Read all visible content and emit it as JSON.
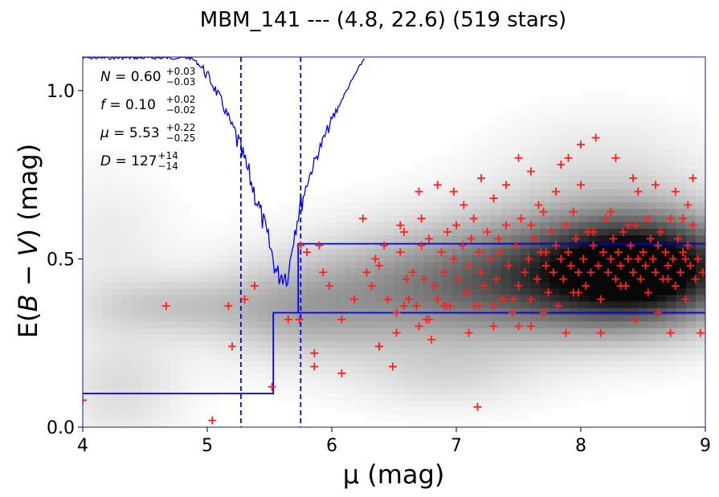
{
  "chart_data": {
    "type": "scatter",
    "title": "MBM_141 --- (4.8, 22.6) (519 stars)",
    "xlabel": "μ (mag)",
    "ylabel_prefix": "E(",
    "ylabel_math": "B − V",
    "ylabel_suffix": ") (mag)",
    "xlim": [
      4,
      9
    ],
    "ylim": [
      0,
      1.1
    ],
    "xticks": [
      4,
      5,
      6,
      7,
      8,
      9
    ],
    "xtick_labels": [
      "4",
      "5",
      "6",
      "7",
      "8",
      "9"
    ],
    "yticks": [
      0.0,
      0.5,
      1.0
    ],
    "ytick_labels": [
      "0.0",
      "0.5",
      "1.0"
    ],
    "grid": false,
    "annotations": [
      {
        "sym": "N",
        "val": "0.60",
        "sup": "+0.03",
        "sub": "−0.03"
      },
      {
        "sym": "f",
        "val": "0.10",
        "sup": "+0.02",
        "sub": "−0.02"
      },
      {
        "sym": "μ",
        "val": "5.53",
        "sup": "+0.22",
        "sub": "−0.25"
      },
      {
        "sym": "D",
        "val": "127",
        "sup": "+14",
        "sub": "−14"
      }
    ],
    "colors": {
      "stars": "#ff2020",
      "model": "#0000ff",
      "density": "#000000",
      "frame": "#1a1a80"
    },
    "stars": [
      [
        4.0,
        0.08
      ],
      [
        4.67,
        0.36
      ],
      [
        5.04,
        0.02
      ],
      [
        5.17,
        0.36
      ],
      [
        5.2,
        0.24
      ],
      [
        5.3,
        0.38
      ],
      [
        5.38,
        0.42
      ],
      [
        5.52,
        0.12
      ],
      [
        5.65,
        0.32
      ],
      [
        5.74,
        0.32
      ],
      [
        5.75,
        0.54
      ],
      [
        5.8,
        0.52
      ],
      [
        5.86,
        0.22
      ],
      [
        5.86,
        0.18
      ],
      [
        5.9,
        0.54
      ],
      [
        5.93,
        0.46
      ],
      [
        5.98,
        0.42
      ],
      [
        6.08,
        0.16
      ],
      [
        6.08,
        0.32
      ],
      [
        6.18,
        0.38
      ],
      [
        6.25,
        0.62
      ],
      [
        6.28,
        0.46
      ],
      [
        6.32,
        0.42
      ],
      [
        6.35,
        0.5
      ],
      [
        6.38,
        0.48
      ],
      [
        6.42,
        0.54
      ],
      [
        6.45,
        0.38
      ],
      [
        6.49,
        0.18
      ],
      [
        6.52,
        0.34
      ],
      [
        6.55,
        0.52
      ],
      [
        6.58,
        0.58
      ],
      [
        6.6,
        0.44
      ],
      [
        6.62,
        0.38
      ],
      [
        6.65,
        0.46
      ],
      [
        6.68,
        0.36
      ],
      [
        6.7,
        0.3
      ],
      [
        6.72,
        0.54
      ],
      [
        6.74,
        0.44
      ],
      [
        6.76,
        0.32
      ],
      [
        6.78,
        0.56
      ],
      [
        6.8,
        0.26
      ],
      [
        6.82,
        0.42
      ],
      [
        6.85,
        0.38
      ],
      [
        6.88,
        0.52
      ],
      [
        6.9,
        0.46
      ],
      [
        6.93,
        0.58
      ],
      [
        6.95,
        0.36
      ],
      [
        6.98,
        0.5
      ],
      [
        7.0,
        0.6
      ],
      [
        7.02,
        0.44
      ],
      [
        7.05,
        0.54
      ],
      [
        7.08,
        0.4
      ],
      [
        7.1,
        0.48
      ],
      [
        7.12,
        0.56
      ],
      [
        7.15,
        0.36
      ],
      [
        7.17,
        0.06
      ],
      [
        7.18,
        0.52
      ],
      [
        7.2,
        0.46
      ],
      [
        7.22,
        0.42
      ],
      [
        7.25,
        0.58
      ],
      [
        7.28,
        0.5
      ],
      [
        7.3,
        0.3
      ],
      [
        7.32,
        0.44
      ],
      [
        7.35,
        0.52
      ],
      [
        7.38,
        0.38
      ],
      [
        7.4,
        0.6
      ],
      [
        7.42,
        0.48
      ],
      [
        7.45,
        0.34
      ],
      [
        7.48,
        0.54
      ],
      [
        7.5,
        0.42
      ],
      [
        7.52,
        0.62
      ],
      [
        7.55,
        0.46
      ],
      [
        7.58,
        0.5
      ],
      [
        7.6,
        0.38
      ],
      [
        7.62,
        0.56
      ],
      [
        7.65,
        0.44
      ],
      [
        7.68,
        0.52
      ],
      [
        7.7,
        0.64
      ],
      [
        7.72,
        0.48
      ],
      [
        7.74,
        0.4
      ],
      [
        7.76,
        0.58
      ],
      [
        7.78,
        0.46
      ],
      [
        7.8,
        0.54
      ],
      [
        7.82,
        0.36
      ],
      [
        7.84,
        0.5
      ],
      [
        7.86,
        0.44
      ],
      [
        7.88,
        0.6
      ],
      [
        7.9,
        0.52
      ],
      [
        7.92,
        0.48
      ],
      [
        7.94,
        0.4
      ],
      [
        7.96,
        0.56
      ],
      [
        7.98,
        0.46
      ],
      [
        8.0,
        0.72
      ],
      [
        8.02,
        0.5
      ],
      [
        8.04,
        0.42
      ],
      [
        8.06,
        0.58
      ],
      [
        8.08,
        0.46
      ],
      [
        8.1,
        0.54
      ],
      [
        8.12,
        0.86
      ],
      [
        8.14,
        0.48
      ],
      [
        8.16,
        0.38
      ],
      [
        8.18,
        0.52
      ],
      [
        8.2,
        0.62
      ],
      [
        8.22,
        0.46
      ],
      [
        8.24,
        0.5
      ],
      [
        8.26,
        0.56
      ],
      [
        8.28,
        0.44
      ],
      [
        8.3,
        0.52
      ],
      [
        8.32,
        0.48
      ],
      [
        8.34,
        0.58
      ],
      [
        8.36,
        0.42
      ],
      [
        8.38,
        0.5
      ],
      [
        8.4,
        0.54
      ],
      [
        8.42,
        0.46
      ],
      [
        8.44,
        0.6
      ],
      [
        8.46,
        0.5
      ],
      [
        8.48,
        0.44
      ],
      [
        8.5,
        0.52
      ],
      [
        8.52,
        0.48
      ],
      [
        8.54,
        0.4
      ],
      [
        8.56,
        0.56
      ],
      [
        8.58,
        0.5
      ],
      [
        8.6,
        0.46
      ],
      [
        8.62,
        0.54
      ],
      [
        8.64,
        0.58
      ],
      [
        8.66,
        0.44
      ],
      [
        8.68,
        0.52
      ],
      [
        8.7,
        0.48
      ],
      [
        8.72,
        0.62
      ],
      [
        8.74,
        0.5
      ],
      [
        8.76,
        0.42
      ],
      [
        8.78,
        0.56
      ],
      [
        8.8,
        0.46
      ],
      [
        8.82,
        0.52
      ],
      [
        8.84,
        0.38
      ],
      [
        8.86,
        0.54
      ],
      [
        8.88,
        0.48
      ],
      [
        8.9,
        0.6
      ],
      [
        8.92,
        0.44
      ],
      [
        8.94,
        0.5
      ],
      [
        8.96,
        0.28
      ],
      [
        8.98,
        0.46
      ],
      [
        8.0,
        0.84
      ],
      [
        7.9,
        0.8
      ],
      [
        8.28,
        0.8
      ],
      [
        7.5,
        0.8
      ],
      [
        7.84,
        0.78
      ],
      [
        8.42,
        0.74
      ],
      [
        7.4,
        0.72
      ],
      [
        7.2,
        0.74
      ],
      [
        6.98,
        0.7
      ],
      [
        6.7,
        0.7
      ],
      [
        7.6,
        0.76
      ],
      [
        7.66,
        0.66
      ],
      [
        8.6,
        0.72
      ],
      [
        8.76,
        0.7
      ],
      [
        8.9,
        0.74
      ],
      [
        6.85,
        0.72
      ],
      [
        7.06,
        0.66
      ],
      [
        7.3,
        0.68
      ],
      [
        7.8,
        0.7
      ],
      [
        8.46,
        0.7
      ],
      [
        7.88,
        0.28
      ],
      [
        7.1,
        0.28
      ],
      [
        8.16,
        0.28
      ],
      [
        8.72,
        0.28
      ],
      [
        7.5,
        0.3
      ],
      [
        7.6,
        0.3
      ],
      [
        8.44,
        0.32
      ],
      [
        6.92,
        0.36
      ],
      [
        7.7,
        0.34
      ],
      [
        8.62,
        0.34
      ],
      [
        6.52,
        0.28
      ],
      [
        6.38,
        0.24
      ],
      [
        6.38,
        0.24
      ],
      [
        6.58,
        0.36
      ],
      [
        6.78,
        0.32
      ],
      [
        6.9,
        0.36
      ],
      [
        7.18,
        0.36
      ],
      [
        7.3,
        0.36
      ],
      [
        7.46,
        0.38
      ],
      [
        7.98,
        0.4
      ],
      [
        8.32,
        0.42
      ],
      [
        8.7,
        0.44
      ],
      [
        8.84,
        0.5
      ],
      [
        7.34,
        0.56
      ],
      [
        7.72,
        0.52
      ],
      [
        8.1,
        0.58
      ],
      [
        8.38,
        0.6
      ],
      [
        8.54,
        0.62
      ],
      [
        8.82,
        0.62
      ],
      [
        7.14,
        0.62
      ],
      [
        6.55,
        0.6
      ],
      [
        6.72,
        0.62
      ],
      [
        7.6,
        0.6
      ],
      [
        7.94,
        0.64
      ],
      [
        8.24,
        0.64
      ],
      [
        8.86,
        0.66
      ]
    ],
    "model_step": [
      [
        4,
        0.1
      ],
      [
        5.53,
        0.1
      ],
      [
        5.53,
        0.34
      ],
      [
        9,
        0.34
      ]
    ],
    "model_upper": [
      [
        5.73,
        0.34
      ],
      [
        5.73,
        0.545
      ],
      [
        9,
        0.545
      ]
    ],
    "dashed_lines_x": [
      5.27,
      5.75
    ]
  }
}
